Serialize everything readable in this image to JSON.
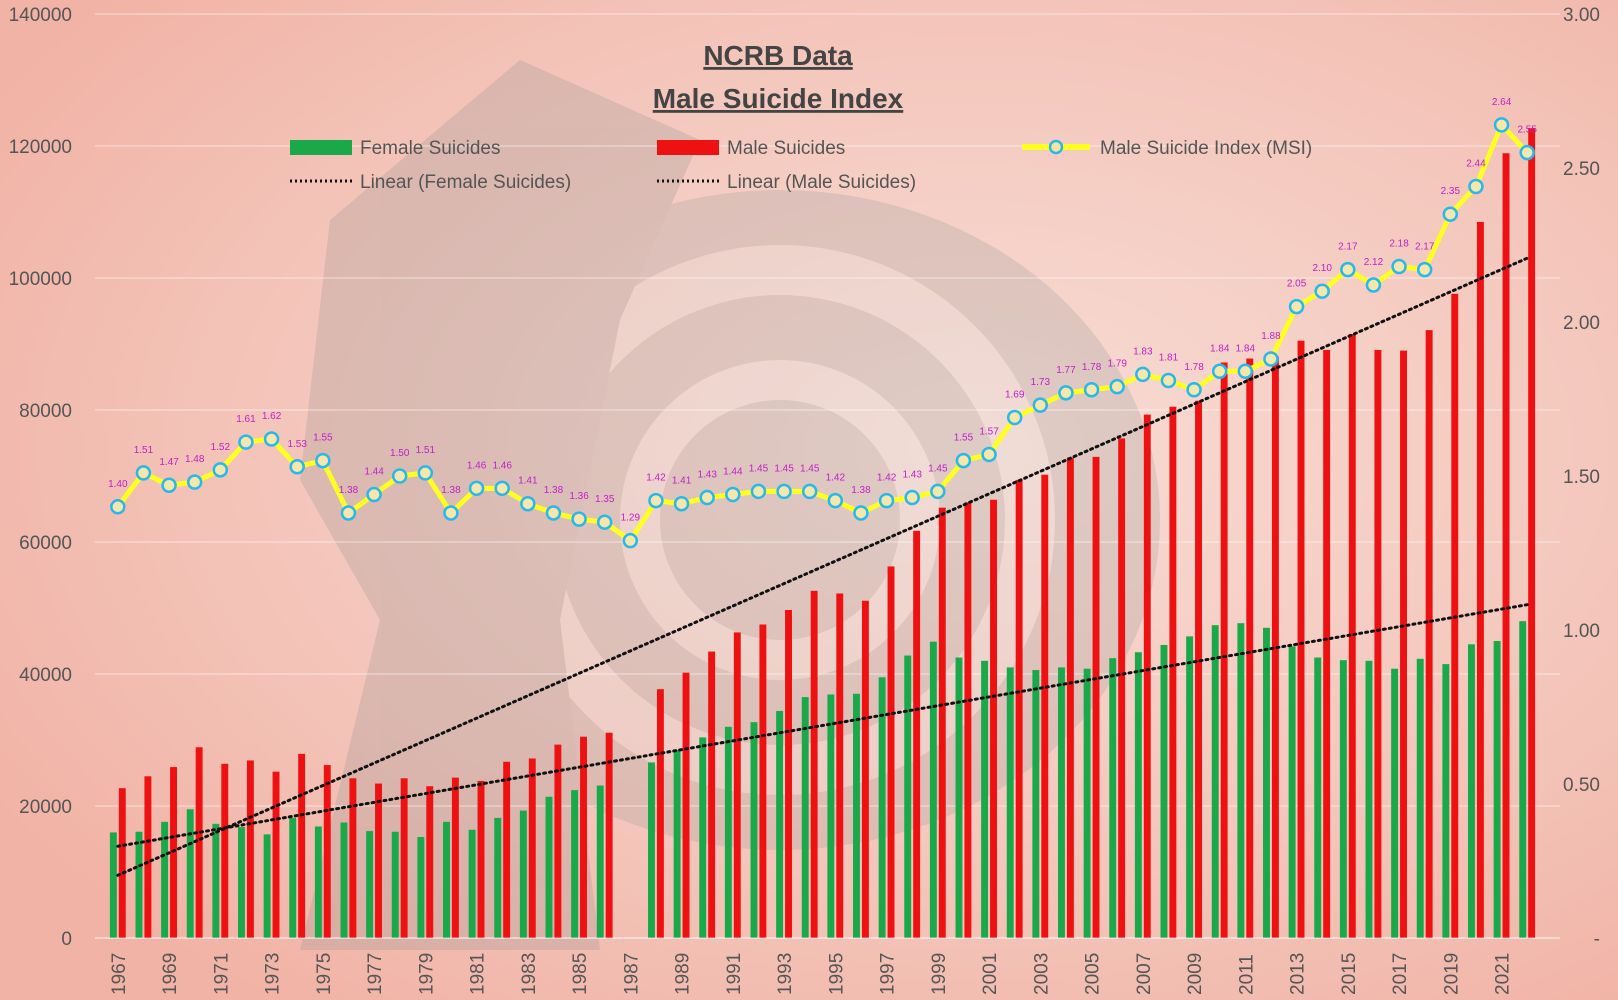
{
  "chart_data": {
    "type": "bar",
    "title": "NCRB Data",
    "subtitle": "Male Suicide Index",
    "years": [
      1967,
      1968,
      1969,
      1970,
      1971,
      1972,
      1973,
      1974,
      1975,
      1976,
      1977,
      1978,
      1979,
      1980,
      1981,
      1982,
      1983,
      1984,
      1985,
      1986,
      1987,
      1988,
      1989,
      1990,
      1991,
      1992,
      1993,
      1994,
      1995,
      1996,
      1997,
      1998,
      1999,
      2000,
      2001,
      2002,
      2003,
      2004,
      2005,
      2006,
      2007,
      2008,
      2009,
      2010,
      2011,
      2012,
      2013,
      2014,
      2015,
      2016,
      2017,
      2018,
      2019,
      2020,
      2021,
      2022
    ],
    "x_tick_labels": [
      "1967",
      "1969",
      "1971",
      "1973",
      "1975",
      "1977",
      "1979",
      "1981",
      "1983",
      "1985",
      "1987",
      "1989",
      "1991",
      "1993",
      "1995",
      "1997",
      "1999",
      "2001",
      "2003",
      "2005",
      "2007",
      "2009",
      "2011",
      "2013",
      "2015",
      "2017",
      "2019",
      "2021"
    ],
    "series": [
      {
        "name": "Female Suicides",
        "axis": "left",
        "color": "#1aa84b",
        "values": [
          16000,
          16100,
          17600,
          19500,
          17300,
          16800,
          15700,
          18200,
          16900,
          17500,
          16200,
          16100,
          15300,
          17600,
          16400,
          18200,
          19300,
          21400,
          22400,
          23100,
          null,
          26600,
          28500,
          30400,
          32000,
          32700,
          34400,
          36500,
          36900,
          37000,
          39500,
          42800,
          44900,
          42500,
          42000,
          41000,
          40600,
          41000,
          40800,
          42400,
          43300,
          44400,
          45700,
          47400,
          47700,
          47000,
          44200,
          42500,
          42100,
          42000,
          40800,
          42300,
          41500,
          44500,
          45000,
          48000
        ]
      },
      {
        "name": "Male Suicides",
        "axis": "left",
        "color": "#ee1111",
        "values": [
          22700,
          24500,
          25900,
          28900,
          26400,
          26900,
          25200,
          27900,
          26200,
          24200,
          23400,
          24200,
          23000,
          24300,
          23800,
          26700,
          27200,
          29300,
          30500,
          31100,
          null,
          37700,
          40200,
          43400,
          46300,
          47500,
          49700,
          52600,
          52200,
          51100,
          56300,
          61700,
          65200,
          66000,
          66400,
          69400,
          70200,
          72800,
          72900,
          75700,
          79300,
          80500,
          81400,
          87200,
          87800,
          88100,
          90500,
          89100,
          91500,
          89100,
          89000,
          92100,
          97600,
          108500,
          118900,
          122700
        ]
      },
      {
        "name": "Male Suicide Index (MSI)",
        "axis": "right",
        "color": "#ffff22",
        "marker_color": "#2ab8e8",
        "values": [
          1.4,
          1.51,
          1.47,
          1.48,
          1.52,
          1.61,
          1.62,
          1.53,
          1.55,
          1.38,
          1.44,
          1.5,
          1.51,
          1.38,
          1.46,
          1.46,
          1.41,
          1.38,
          1.36,
          1.35,
          1.29,
          1.42,
          1.41,
          1.43,
          1.44,
          1.45,
          1.45,
          1.45,
          1.42,
          1.38,
          1.42,
          1.43,
          1.45,
          1.55,
          1.57,
          1.69,
          1.73,
          1.77,
          1.78,
          1.79,
          1.83,
          1.81,
          1.78,
          1.84,
          1.84,
          1.88,
          2.05,
          2.1,
          2.17,
          2.12,
          2.18,
          2.17,
          2.35,
          2.44,
          2.64,
          2.55
        ],
        "data_labels": [
          "1.40",
          "1.51",
          "1.47",
          "1.48",
          "1.52",
          "1.61",
          "1.62",
          "1.53",
          "1.55",
          "1.38",
          "1.44",
          "1.50",
          "1.51",
          "1.38",
          "1.46",
          "1.46",
          "1.41",
          "1.38",
          "1.36",
          "1.35",
          "1.29",
          "1.42",
          "1.41",
          "1.43",
          "1.44",
          "1.45",
          "1.45",
          "1.45",
          "1.42",
          "1.38",
          "1.42",
          "1.43",
          "1.45",
          "1.55",
          "1.57",
          "1.69",
          "1.73",
          "1.77",
          "1.78",
          "1.79",
          "1.83",
          "1.81",
          "1.78",
          "1.84",
          "1.84",
          "1.88",
          "2.05",
          "2.10",
          "2.17",
          "2.12",
          "2.18",
          "2.17",
          "2.35",
          "2.44",
          "2.64",
          "2.55"
        ]
      }
    ],
    "trendlines": [
      {
        "name": "Linear (Female Suicides)",
        "of": "Female Suicides",
        "start": 13900,
        "end": 50500,
        "color": "#111111",
        "style": "dotted"
      },
      {
        "name": "Linear (Male Suicides)",
        "of": "Male Suicides",
        "start": 9500,
        "end": 103000,
        "color": "#111111",
        "style": "dotted"
      }
    ],
    "y_left": {
      "ylim": [
        0,
        140000
      ],
      "ticks": [
        "0",
        "20000",
        "40000",
        "60000",
        "80000",
        "100000",
        "120000",
        "140000"
      ]
    },
    "y_right": {
      "ylim": [
        0,
        3.0
      ],
      "ticks": [
        "-",
        "0.50",
        "1.00",
        "1.50",
        "2.00",
        "2.50",
        "3.00"
      ]
    },
    "legend_position": "top",
    "grid": "horizontal"
  }
}
